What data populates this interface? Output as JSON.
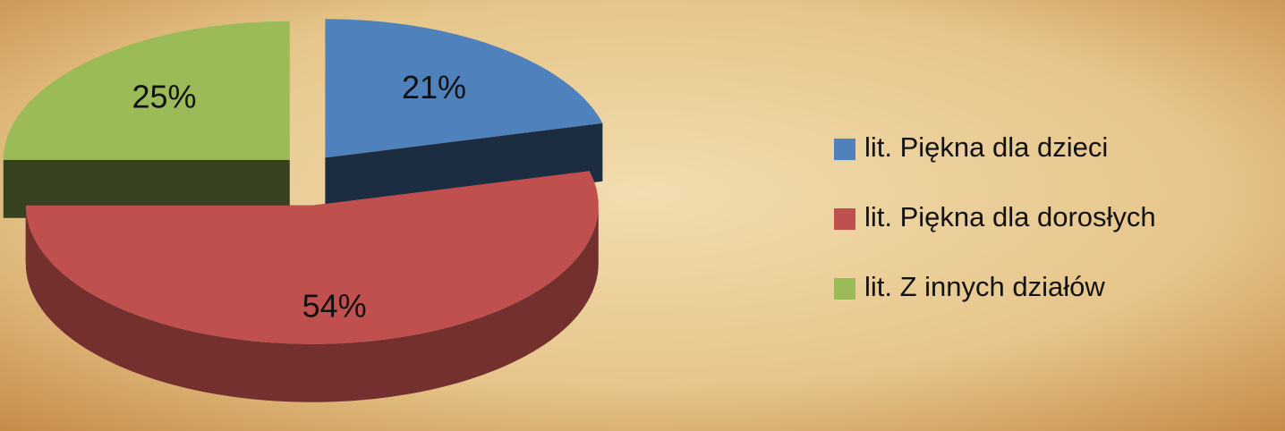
{
  "chart_data": {
    "type": "pie",
    "categories": [
      "lit. Piękna dla dzieci",
      "lit. Piękna dla dorosłych",
      "lit. Z innych działów"
    ],
    "values": [
      21,
      54,
      25
    ],
    "value_labels": [
      "21%",
      "54%",
      "25%"
    ],
    "colors": [
      "#4f81bd",
      "#c0504d",
      "#9bbb59"
    ],
    "legend": "right"
  }
}
